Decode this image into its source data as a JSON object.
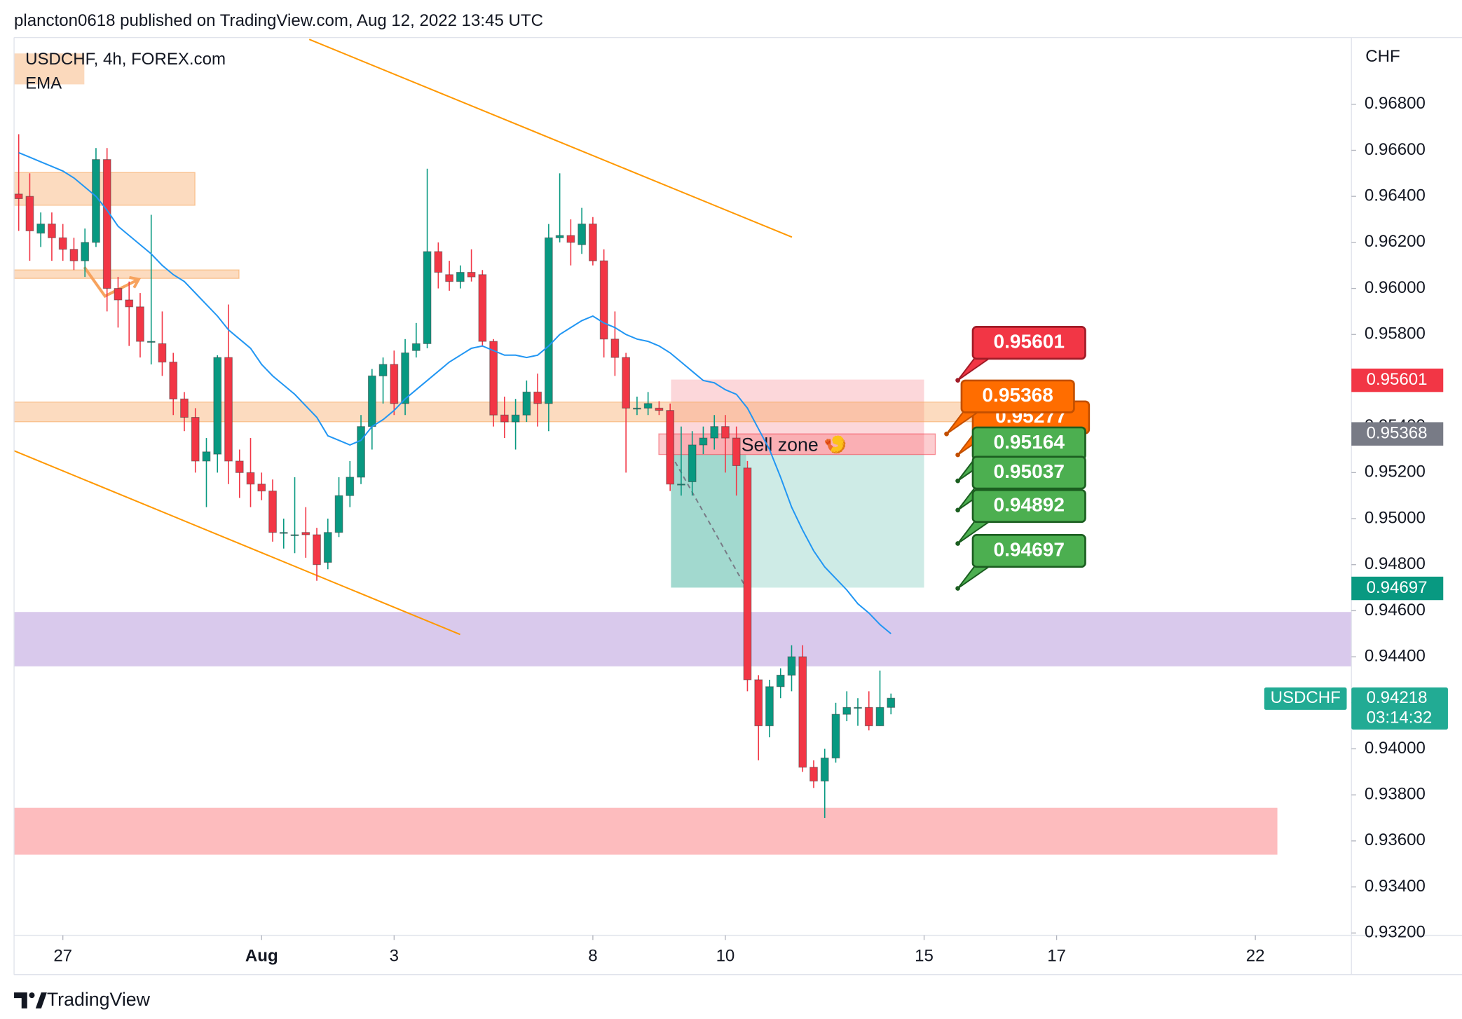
{
  "header": {
    "byline": "plancton0618 published on TradingView.com, Aug 12, 2022 13:45 UTC"
  },
  "footer": {
    "brand": "TradingView"
  },
  "chart_data": {
    "type": "candlestick",
    "title": "USDCHF, 4h, FOREX.com",
    "indicator": "EMA",
    "currency": "CHF",
    "symbol": "USDCHF",
    "last_price": 0.94218,
    "countdown": "03:14:32",
    "annotation": "Sell zone 🍤",
    "up_color": "#089981",
    "down_color": "#f23645",
    "ema_color": "#2196f3",
    "x": [
      0,
      1,
      2,
      3,
      4,
      5,
      6,
      7,
      8,
      9,
      10,
      11,
      12,
      13,
      14,
      15,
      16,
      17,
      18,
      19,
      20,
      21,
      22,
      23,
      24,
      25,
      26,
      27,
      28,
      29,
      30,
      31,
      32,
      33,
      34,
      35,
      36,
      37,
      38,
      39,
      40,
      41,
      42,
      43,
      44,
      45,
      46,
      47,
      48,
      49,
      50,
      51,
      52,
      53,
      54,
      55,
      56,
      57,
      58,
      59,
      60,
      61,
      62,
      63,
      64,
      65,
      66,
      67,
      68,
      69,
      70,
      71,
      72,
      73,
      74,
      75,
      76,
      77,
      78,
      79
    ],
    "open": [
      0.9641,
      0.964,
      0.9624,
      0.9628,
      0.9622,
      0.9617,
      0.9612,
      0.962,
      0.9656,
      0.96,
      0.9595,
      0.9592,
      0.9577,
      0.9576,
      0.9568,
      0.9552,
      0.9544,
      0.9525,
      0.9528,
      0.957,
      0.9525,
      0.952,
      0.9515,
      0.9512,
      0.9494,
      0.9493,
      0.9494,
      0.9493,
      0.9481,
      0.9494,
      0.951,
      0.9518,
      0.954,
      0.9562,
      0.9567,
      0.955,
      0.9573,
      0.9576,
      0.9616,
      0.9606,
      0.9603,
      0.9607,
      0.9606,
      0.9577,
      0.9545,
      0.9542,
      0.9545,
      0.9555,
      0.955,
      0.9622,
      0.9623,
      0.9619,
      0.9628,
      0.9612,
      0.9578,
      0.957,
      0.9548,
      0.9548,
      0.9548,
      0.9547,
      0.9515,
      0.9516,
      0.9532,
      0.9535,
      0.954,
      0.9535,
      0.9522,
      0.943,
      0.941,
      0.9427,
      0.9432,
      0.944,
      0.9392,
      0.9386,
      0.9396,
      0.9415,
      0.9418,
      0.9418,
      0.941,
      0.9418
    ],
    "high": [
      0.9667,
      0.965,
      0.9633,
      0.9633,
      0.9628,
      0.9622,
      0.9626,
      0.9661,
      0.9661,
      0.9605,
      0.9603,
      0.9598,
      0.9632,
      0.959,
      0.9572,
      0.9555,
      0.9548,
      0.9535,
      0.9571,
      0.9593,
      0.953,
      0.9535,
      0.952,
      0.9517,
      0.95,
      0.9518,
      0.9505,
      0.9496,
      0.95,
      0.9518,
      0.9525,
      0.9545,
      0.9565,
      0.957,
      0.9573,
      0.9578,
      0.9585,
      0.9652,
      0.962,
      0.9612,
      0.961,
      0.9617,
      0.9608,
      0.9578,
      0.9553,
      0.9552,
      0.956,
      0.9563,
      0.9628,
      0.965,
      0.963,
      0.9635,
      0.9631,
      0.9617,
      0.959,
      0.9572,
      0.9553,
      0.9555,
      0.9551,
      0.955,
      0.954,
      0.9538,
      0.954,
      0.9545,
      0.9545,
      0.954,
      0.9525,
      0.9432,
      0.943,
      0.9435,
      0.9445,
      0.9445,
      0.9395,
      0.94,
      0.942,
      0.9425,
      0.9422,
      0.9425,
      0.9434,
      0.9424
    ],
    "low": [
      0.9625,
      0.9612,
      0.9618,
      0.9612,
      0.9612,
      0.9608,
      0.9605,
      0.9618,
      0.959,
      0.9583,
      0.9575,
      0.957,
      0.9567,
      0.9562,
      0.9545,
      0.9538,
      0.952,
      0.9505,
      0.952,
      0.9515,
      0.9509,
      0.9505,
      0.9508,
      0.949,
      0.9487,
      0.9485,
      0.9483,
      0.9473,
      0.9478,
      0.9492,
      0.9505,
      0.9515,
      0.953,
      0.955,
      0.9545,
      0.9545,
      0.957,
      0.9574,
      0.96,
      0.9599,
      0.96,
      0.9603,
      0.9575,
      0.954,
      0.9535,
      0.953,
      0.9542,
      0.954,
      0.9538,
      0.962,
      0.961,
      0.9615,
      0.961,
      0.957,
      0.9562,
      0.952,
      0.9545,
      0.9545,
      0.9545,
      0.9512,
      0.951,
      0.951,
      0.9528,
      0.953,
      0.952,
      0.951,
      0.9425,
      0.9395,
      0.9405,
      0.9422,
      0.9425,
      0.939,
      0.9383,
      0.937,
      0.9394,
      0.9412,
      0.941,
      0.9408,
      0.941,
      0.9415
    ],
    "close": [
      0.9639,
      0.9625,
      0.9628,
      0.9622,
      0.9617,
      0.9612,
      0.962,
      0.9656,
      0.96,
      0.9595,
      0.9592,
      0.9577,
      0.9577,
      0.9568,
      0.9552,
      0.9544,
      0.9525,
      0.9529,
      0.957,
      0.9525,
      0.952,
      0.9515,
      0.9512,
      0.9494,
      0.9494,
      0.9493,
      0.9493,
      0.948,
      0.9494,
      0.951,
      0.9518,
      0.954,
      0.9562,
      0.9567,
      0.955,
      0.9572,
      0.9576,
      0.9616,
      0.9607,
      0.9603,
      0.9607,
      0.9605,
      0.9577,
      0.9545,
      0.9542,
      0.9545,
      0.9555,
      0.955,
      0.9622,
      0.9623,
      0.962,
      0.9628,
      0.9612,
      0.9578,
      0.957,
      0.9548,
      0.9548,
      0.955,
      0.9547,
      0.9515,
      0.9515,
      0.9532,
      0.9535,
      0.954,
      0.9535,
      0.9523,
      0.943,
      0.941,
      0.9427,
      0.9432,
      0.944,
      0.9392,
      0.9386,
      0.9396,
      0.9415,
      0.9418,
      0.9418,
      0.941,
      0.9418,
      0.9422
    ],
    "ema": [
      0.9659,
      0.9657,
      0.9655,
      0.9653,
      0.9651,
      0.9648,
      0.9644,
      0.964,
      0.9634,
      0.9627,
      0.9623,
      0.9619,
      0.9615,
      0.961,
      0.9606,
      0.9603,
      0.9598,
      0.9593,
      0.9588,
      0.9582,
      0.9578,
      0.9574,
      0.9567,
      0.9562,
      0.9558,
      0.9554,
      0.9549,
      0.9544,
      0.9536,
      0.9534,
      0.9532,
      0.9534,
      0.954,
      0.9543,
      0.9547,
      0.9552,
      0.9556,
      0.956,
      0.9564,
      0.9568,
      0.9571,
      0.9574,
      0.9575,
      0.9573,
      0.9571,
      0.9571,
      0.957,
      0.9571,
      0.9575,
      0.958,
      0.9583,
      0.9586,
      0.9588,
      0.9585,
      0.9583,
      0.958,
      0.9578,
      0.9577,
      0.9575,
      0.9572,
      0.9568,
      0.9564,
      0.956,
      0.9559,
      0.9556,
      0.9554,
      0.9548,
      0.9539,
      0.953,
      0.9518,
      0.9505,
      0.9495,
      0.9486,
      0.9479,
      0.9474,
      0.9469,
      0.9463,
      0.9459,
      0.9454,
      0.945
    ],
    "xlim": [
      -0.42,
      120.7
    ],
    "xticks": [
      {
        "value": 4,
        "label": "27"
      },
      {
        "value": 22,
        "label": "Aug"
      },
      {
        "value": 34,
        "label": "3"
      },
      {
        "value": 52,
        "label": "8"
      },
      {
        "value": 64,
        "label": "10"
      },
      {
        "value": 82,
        "label": "15"
      },
      {
        "value": 94,
        "label": "17"
      },
      {
        "value": 112,
        "label": "22"
      }
    ],
    "ylim": [
      0.9319,
      0.9709
    ],
    "yticks": [
      {
        "value": 0.968,
        "label": "0.96800"
      },
      {
        "value": 0.966,
        "label": "0.96600"
      },
      {
        "value": 0.964,
        "label": "0.96400"
      },
      {
        "value": 0.962,
        "label": "0.96200"
      },
      {
        "value": 0.96,
        "label": "0.96000"
      },
      {
        "value": 0.958,
        "label": "0.95800"
      },
      {
        "value": 0.956,
        "label": "0.95600"
      },
      {
        "value": 0.954,
        "label": "0.95400"
      },
      {
        "value": 0.952,
        "label": "0.95200"
      },
      {
        "value": 0.95,
        "label": "0.95000"
      },
      {
        "value": 0.948,
        "label": "0.94800"
      },
      {
        "value": 0.946,
        "label": "0.94600"
      },
      {
        "value": 0.944,
        "label": "0.94400"
      },
      {
        "value": 0.942,
        "label": "0.94200"
      },
      {
        "value": 0.94,
        "label": "0.94000"
      },
      {
        "value": 0.938,
        "label": "0.93800"
      },
      {
        "value": 0.936,
        "label": "0.93600"
      },
      {
        "value": 0.934,
        "label": "0.93400"
      },
      {
        "value": 0.932,
        "label": "0.93200"
      }
    ],
    "price_labels": [
      {
        "value": 0.95601,
        "color": "#f23645"
      },
      {
        "value": 0.95368,
        "color": "#787b86"
      },
      {
        "value": 0.94697,
        "color": "#089981"
      }
    ],
    "callouts": [
      {
        "value": 0.95601,
        "color": "#f23645"
      },
      {
        "value": 0.95277,
        "color": "#ff6d00"
      },
      {
        "value": 0.95368,
        "color": "#ff6d00"
      },
      {
        "value": 0.95164,
        "color": "#4caf50"
      },
      {
        "value": 0.95037,
        "color": "#4caf50"
      },
      {
        "value": 0.94892,
        "color": "#4caf50"
      },
      {
        "value": 0.94697,
        "color": "#4caf50"
      }
    ]
  }
}
